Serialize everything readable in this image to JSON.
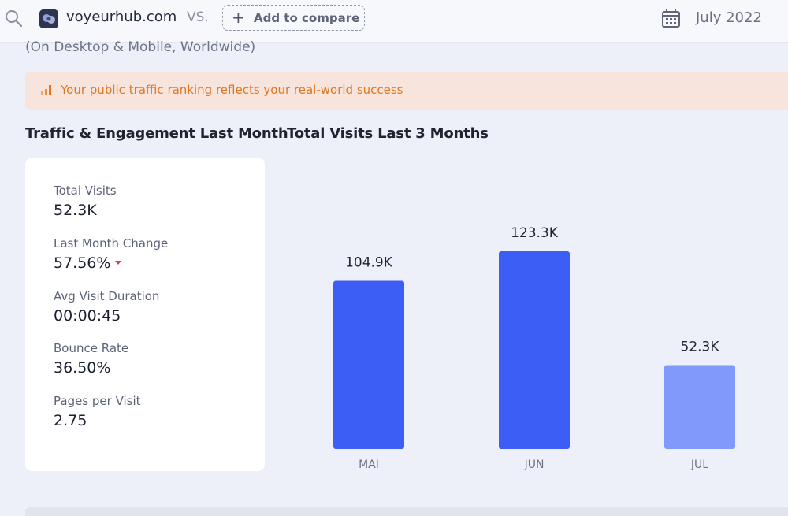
{
  "header": {
    "domain": "voyeurhub.com",
    "vs_label": "VS.",
    "compare_button": "Add to compare",
    "date": "July 2022"
  },
  "subtitle": "(On Desktop & Mobile, Worldwide)",
  "banner": {
    "text": "Your public traffic ranking reflects your real-world success",
    "color": "#e3761e"
  },
  "traffic": {
    "title": "Traffic & Engagement Last Month",
    "metrics": [
      {
        "label": "Total Visits",
        "value": "52.3K"
      },
      {
        "label": "Last Month Change",
        "value": "57.56%",
        "trend": "down"
      },
      {
        "label": "Avg Visit Duration",
        "value": "00:00:45"
      },
      {
        "label": "Bounce Rate",
        "value": "36.50%"
      },
      {
        "label": "Pages per Visit",
        "value": "2.75"
      }
    ]
  },
  "chart_data": {
    "type": "bar",
    "title": "Total Visits Last 3 Months",
    "categories": [
      "MAI",
      "JUN",
      "JUL"
    ],
    "values": [
      104.9,
      123.3,
      52.3
    ],
    "value_labels": [
      "104.9K",
      "123.3K",
      "52.3K"
    ],
    "ylim": [
      0,
      150
    ],
    "grid": false,
    "colors": [
      "#3d5ef5",
      "#3d5ef5",
      "#8099fb"
    ]
  }
}
